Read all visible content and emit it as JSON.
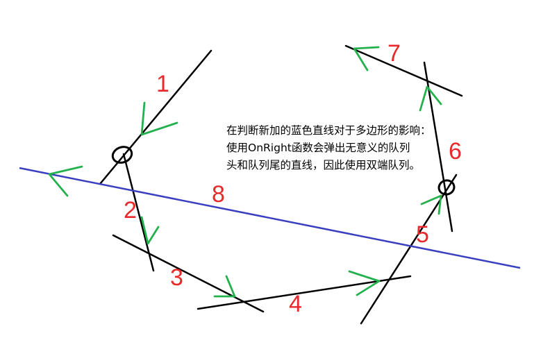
{
  "note": {
    "line1": "在判断新加的蓝色直线对于多边形的影响：",
    "line2": "使用OnRight函数会弹出无意义的队列",
    "line3": "头和队列尾的直线，因此使用双端队列。"
  },
  "labels": {
    "l1": "1",
    "l2": "2",
    "l3": "3",
    "l4": "4",
    "l5": "5",
    "l6": "6",
    "l7": "7",
    "l8": "8"
  },
  "colors": {
    "line": "#000000",
    "new_line": "#3a3fbf",
    "arrow": "#22b14c",
    "label": "#e8282b"
  }
}
